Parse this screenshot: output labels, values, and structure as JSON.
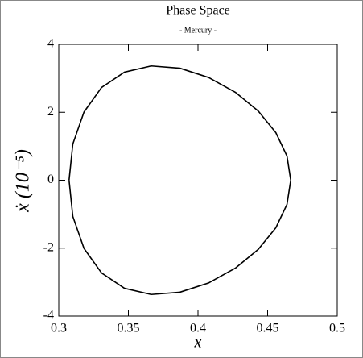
{
  "chart_data": {
    "type": "line",
    "title": "Phase Space",
    "subtitle": "- Mercury -",
    "x_label": "x",
    "y_label": "ẋ (10⁻⁵)",
    "x": [
      0.3074,
      0.3101,
      0.3181,
      0.3307,
      0.3472,
      0.3664,
      0.387,
      0.4076,
      0.4268,
      0.4433,
      0.4559,
      0.4639,
      0.4666,
      0.4639,
      0.4559,
      0.4433,
      0.4268,
      0.4076,
      0.387,
      0.3664,
      0.3472,
      0.3307,
      0.3181,
      0.3101,
      0.3074
    ],
    "series": [
      {
        "color": "#000000",
        "values": [
          0,
          1.065,
          2.006,
          2.729,
          3.183,
          3.365,
          3.298,
          3.025,
          2.59,
          2.036,
          1.4,
          0.712,
          0,
          -0.712,
          -1.4,
          -2.036,
          -2.59,
          -3.025,
          -3.298,
          -3.365,
          -3.183,
          -2.729,
          -2.006,
          -1.065,
          0
        ]
      }
    ],
    "xlim": [
      0.3,
      0.5
    ],
    "xticks": [
      0.3,
      0.35,
      0.4,
      0.45,
      0.5
    ],
    "ylim": [
      -4,
      4
    ],
    "yticks": [
      -4,
      -2,
      0,
      2,
      4
    ],
    "grid": false
  }
}
